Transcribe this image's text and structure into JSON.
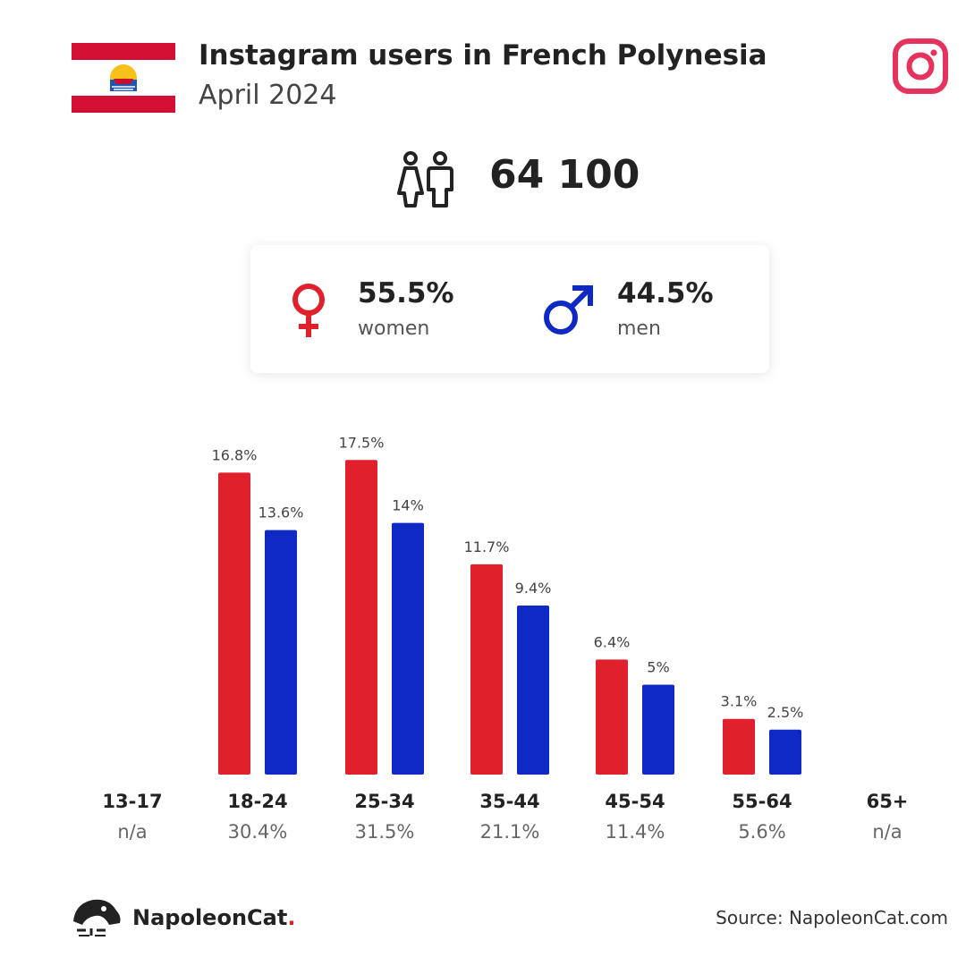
{
  "header": {
    "title": "Instagram users in French Polynesia",
    "subtitle": "April 2024"
  },
  "total": {
    "value": "64 100"
  },
  "gender": {
    "women": {
      "pct": "55.5%",
      "label": "women"
    },
    "men": {
      "pct": "44.5%",
      "label": "men"
    }
  },
  "colors": {
    "women": "#e0212b",
    "men": "#0f2ac4",
    "instagram": "#e5335e"
  },
  "chart_data": {
    "type": "bar",
    "categories": [
      "13-17",
      "18-24",
      "25-34",
      "35-44",
      "45-54",
      "55-64",
      "65+"
    ],
    "category_totals": [
      "n/a",
      "30.4%",
      "31.5%",
      "21.1%",
      "11.4%",
      "5.6%",
      "n/a"
    ],
    "series": [
      {
        "name": "women",
        "values": [
          null,
          16.8,
          17.5,
          11.7,
          6.4,
          3.1,
          null
        ],
        "labels": [
          "",
          "16.8%",
          "17.5%",
          "11.7%",
          "6.4%",
          "3.1%",
          ""
        ]
      },
      {
        "name": "men",
        "values": [
          null,
          13.6,
          14.0,
          9.4,
          5.0,
          2.5,
          null
        ],
        "labels": [
          "",
          "13.6%",
          "14%",
          "9.4%",
          "5%",
          "2.5%",
          ""
        ]
      }
    ],
    "grid": false
  },
  "footer": {
    "brand": "NapoleonCat",
    "brand_dot": ".",
    "source": "Source: NapoleonCat.com"
  }
}
